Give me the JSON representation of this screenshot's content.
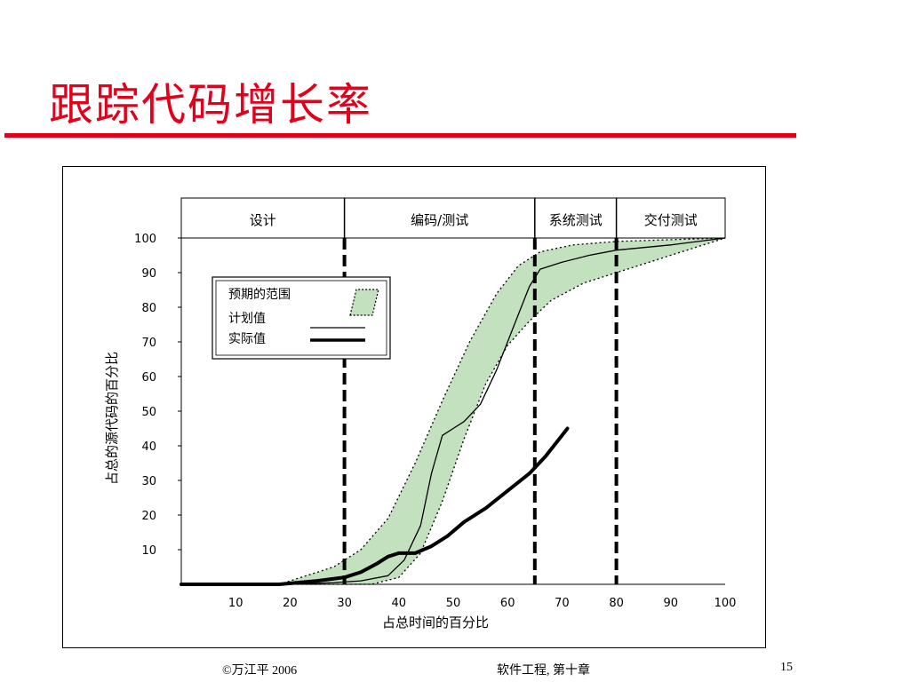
{
  "slide": {
    "title": "跟踪代码增长率",
    "footer": {
      "copyright": "©万江平  2006",
      "course": "软件工程, 第十章",
      "page": "15"
    }
  },
  "colors": {
    "title": "#e2001a",
    "band_fill": "#c3e0bf",
    "line": "#000000"
  },
  "chart_data": {
    "type": "line",
    "title": "",
    "xlabel": "占总时间的百分比",
    "ylabel": "占总的源代码的百分比",
    "xlim": [
      0,
      100
    ],
    "ylim": [
      0,
      100
    ],
    "x_ticks": [
      10,
      20,
      30,
      40,
      50,
      60,
      70,
      80,
      90,
      100
    ],
    "y_ticks": [
      10,
      20,
      30,
      40,
      50,
      60,
      70,
      80,
      90,
      100
    ],
    "grid": false,
    "phases": [
      {
        "label": "设计",
        "start": 0,
        "end": 30
      },
      {
        "label": "编码/测试",
        "start": 30,
        "end": 65
      },
      {
        "label": "系统测试",
        "start": 65,
        "end": 80
      },
      {
        "label": "交付测试",
        "start": 80,
        "end": 100
      }
    ],
    "phase_boundaries": [
      30,
      65,
      80
    ],
    "legend": {
      "position": "top-left",
      "entries": [
        "预期的范围",
        "计划值",
        "实际值"
      ]
    },
    "band": {
      "name": "预期的范围",
      "upper": [
        [
          18,
          0
        ],
        [
          22,
          2
        ],
        [
          28,
          5
        ],
        [
          33,
          10
        ],
        [
          38,
          19
        ],
        [
          43,
          35
        ],
        [
          48,
          53
        ],
        [
          53,
          70
        ],
        [
          58,
          84
        ],
        [
          62,
          92
        ],
        [
          66,
          96
        ],
        [
          72,
          98
        ],
        [
          80,
          99
        ],
        [
          90,
          99.5
        ],
        [
          100,
          100
        ]
      ],
      "lower": [
        [
          18,
          0
        ],
        [
          25,
          0
        ],
        [
          30,
          0
        ],
        [
          35,
          0
        ],
        [
          40,
          2
        ],
        [
          44,
          9
        ],
        [
          48,
          24
        ],
        [
          52,
          42
        ],
        [
          56,
          58
        ],
        [
          60,
          69
        ],
        [
          64,
          76
        ],
        [
          68,
          82
        ],
        [
          74,
          87
        ],
        [
          80,
          90
        ],
        [
          90,
          95
        ],
        [
          100,
          100
        ]
      ]
    },
    "series": [
      {
        "name": "计划值",
        "style": "thin",
        "points": [
          [
            0,
            0
          ],
          [
            20,
            0
          ],
          [
            28,
            0.5
          ],
          [
            33,
            1
          ],
          [
            38,
            2.5
          ],
          [
            41,
            7
          ],
          [
            44,
            17
          ],
          [
            46,
            32
          ],
          [
            48,
            43
          ],
          [
            50,
            45
          ],
          [
            52,
            47
          ],
          [
            55,
            52
          ],
          [
            58,
            62
          ],
          [
            61,
            74
          ],
          [
            64,
            86
          ],
          [
            66,
            91
          ],
          [
            70,
            93
          ],
          [
            75,
            95
          ],
          [
            80,
            96.5
          ],
          [
            90,
            98
          ],
          [
            100,
            100
          ]
        ]
      },
      {
        "name": "实际值",
        "style": "thick",
        "points": [
          [
            0,
            0
          ],
          [
            18,
            0
          ],
          [
            25,
            1
          ],
          [
            30,
            2
          ],
          [
            33,
            3.5
          ],
          [
            36,
            6
          ],
          [
            38,
            8
          ],
          [
            40,
            9
          ],
          [
            43,
            9
          ],
          [
            46,
            11
          ],
          [
            49,
            14
          ],
          [
            52,
            18
          ],
          [
            56,
            22
          ],
          [
            60,
            27
          ],
          [
            64,
            32
          ],
          [
            67,
            37
          ],
          [
            69,
            41
          ],
          [
            71,
            45
          ]
        ]
      }
    ]
  }
}
